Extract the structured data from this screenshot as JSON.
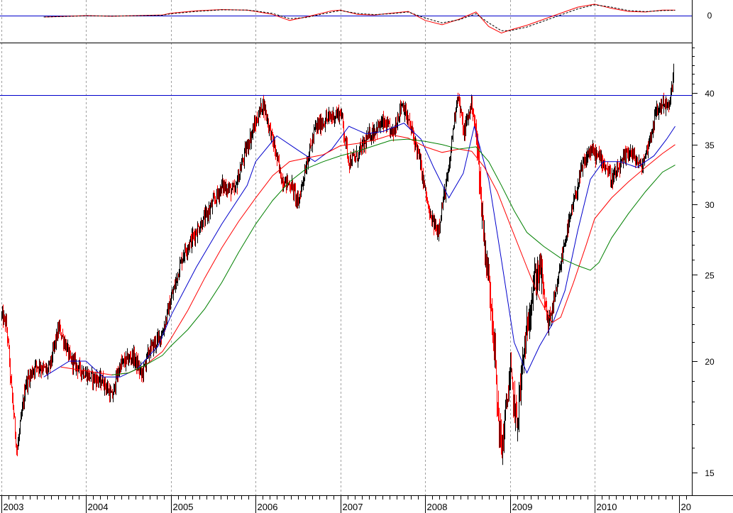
{
  "chart_data": [
    {
      "type": "line",
      "panel": "oscillator",
      "y_scale": "linear",
      "ylim": [
        -1.6,
        1.05
      ],
      "y_ticks": [
        {
          "value": 0,
          "label": "0"
        }
      ],
      "reference_line": 0,
      "series": [
        {
          "style": "solid",
          "color": "#ff0000",
          "values": [
            [
              2003.5,
              -0.12
            ],
            [
              2003.8,
              -0.05
            ],
            [
              2004.0,
              0.0
            ],
            [
              2004.3,
              -0.05
            ],
            [
              2004.6,
              0.0
            ],
            [
              2004.9,
              0.05
            ],
            [
              2005.0,
              0.2
            ],
            [
              2005.3,
              0.4
            ],
            [
              2005.6,
              0.5
            ],
            [
              2005.9,
              0.45
            ],
            [
              2006.0,
              0.35
            ],
            [
              2006.2,
              0.1
            ],
            [
              2006.4,
              -0.4
            ],
            [
              2006.6,
              -0.1
            ],
            [
              2006.9,
              0.4
            ],
            [
              2007.0,
              0.45
            ],
            [
              2007.2,
              0.1
            ],
            [
              2007.4,
              0.05
            ],
            [
              2007.6,
              0.2
            ],
            [
              2007.8,
              0.35
            ],
            [
              2008.0,
              -0.4
            ],
            [
              2008.2,
              -0.75
            ],
            [
              2008.4,
              -0.3
            ],
            [
              2008.6,
              0.3
            ],
            [
              2008.75,
              -0.9
            ],
            [
              2008.9,
              -1.45
            ],
            [
              2009.0,
              -1.2
            ],
            [
              2009.2,
              -0.8
            ],
            [
              2009.4,
              -0.3
            ],
            [
              2009.6,
              0.2
            ],
            [
              2009.8,
              0.7
            ],
            [
              2010.0,
              0.95
            ],
            [
              2010.2,
              0.6
            ],
            [
              2010.4,
              0.35
            ],
            [
              2010.6,
              0.3
            ],
            [
              2010.8,
              0.45
            ],
            [
              2010.95,
              0.45
            ]
          ]
        },
        {
          "style": "dashed",
          "color": "#000000",
          "values": [
            [
              2003.5,
              -0.12
            ],
            [
              2003.8,
              -0.06
            ],
            [
              2004.0,
              -0.02
            ],
            [
              2004.3,
              -0.04
            ],
            [
              2004.6,
              -0.01
            ],
            [
              2004.9,
              0.03
            ],
            [
              2005.0,
              0.15
            ],
            [
              2005.3,
              0.35
            ],
            [
              2005.6,
              0.48
            ],
            [
              2005.9,
              0.46
            ],
            [
              2006.0,
              0.38
            ],
            [
              2006.2,
              0.18
            ],
            [
              2006.4,
              -0.25
            ],
            [
              2006.6,
              -0.15
            ],
            [
              2006.9,
              0.3
            ],
            [
              2007.0,
              0.42
            ],
            [
              2007.2,
              0.18
            ],
            [
              2007.4,
              0.08
            ],
            [
              2007.6,
              0.16
            ],
            [
              2007.8,
              0.3
            ],
            [
              2008.0,
              -0.2
            ],
            [
              2008.2,
              -0.6
            ],
            [
              2008.4,
              -0.35
            ],
            [
              2008.6,
              0.15
            ],
            [
              2008.75,
              -0.6
            ],
            [
              2008.9,
              -1.25
            ],
            [
              2009.0,
              -1.25
            ],
            [
              2009.2,
              -0.95
            ],
            [
              2009.4,
              -0.45
            ],
            [
              2009.6,
              0.05
            ],
            [
              2009.8,
              0.55
            ],
            [
              2010.0,
              0.9
            ],
            [
              2010.2,
              0.7
            ],
            [
              2010.4,
              0.42
            ],
            [
              2010.6,
              0.33
            ],
            [
              2010.8,
              0.42
            ],
            [
              2010.95,
              0.44
            ]
          ]
        }
      ]
    },
    {
      "type": "candlestick",
      "panel": "price",
      "y_scale": "log",
      "ylim": [
        14.5,
        46
      ],
      "y_ticks": [
        {
          "value": 15,
          "label": "15"
        },
        {
          "value": 20,
          "label": "20"
        },
        {
          "value": 25,
          "label": "25"
        },
        {
          "value": 30,
          "label": "30"
        },
        {
          "value": 35,
          "label": "35"
        },
        {
          "value": 40,
          "label": "40"
        }
      ],
      "xlim": [
        2003.0,
        2010.95
      ],
      "x_ticks": [
        "2003",
        "2004",
        "2005",
        "2006",
        "2007",
        "2008",
        "2009",
        "2010",
        "20"
      ],
      "reference_line": 39.8,
      "up_color": "#000000",
      "down_color": "#ff0000",
      "price_path": [
        [
          2003.0,
          22.5
        ],
        [
          2003.05,
          22.0
        ],
        [
          2003.12,
          18.5
        ],
        [
          2003.18,
          15.8
        ],
        [
          2003.28,
          18.8
        ],
        [
          2003.4,
          19.8
        ],
        [
          2003.55,
          19.5
        ],
        [
          2003.68,
          21.8
        ],
        [
          2003.8,
          20.2
        ],
        [
          2003.92,
          19.6
        ],
        [
          2004.05,
          19.2
        ],
        [
          2004.2,
          19.0
        ],
        [
          2004.3,
          18.2
        ],
        [
          2004.4,
          19.8
        ],
        [
          2004.55,
          20.3
        ],
        [
          2004.65,
          19.3
        ],
        [
          2004.75,
          20.6
        ],
        [
          2004.9,
          21.5
        ],
        [
          2005.0,
          23.5
        ],
        [
          2005.15,
          26.5
        ],
        [
          2005.3,
          28.0
        ],
        [
          2005.45,
          29.5
        ],
        [
          2005.6,
          31.5
        ],
        [
          2005.75,
          31.0
        ],
        [
          2005.9,
          35.0
        ],
        [
          2006.0,
          37.0
        ],
        [
          2006.08,
          39.0
        ],
        [
          2006.18,
          36.0
        ],
        [
          2006.3,
          32.0
        ],
        [
          2006.42,
          31.5
        ],
        [
          2006.5,
          30.0
        ],
        [
          2006.6,
          33.5
        ],
        [
          2006.7,
          36.5
        ],
        [
          2006.85,
          37.5
        ],
        [
          2007.0,
          38.0
        ],
        [
          2007.1,
          33.5
        ],
        [
          2007.2,
          34.0
        ],
        [
          2007.35,
          36.0
        ],
        [
          2007.5,
          37.0
        ],
        [
          2007.62,
          36.0
        ],
        [
          2007.72,
          39.0
        ],
        [
          2007.85,
          36.0
        ],
        [
          2007.95,
          33.0
        ],
        [
          2008.05,
          29.0
        ],
        [
          2008.15,
          28.0
        ],
        [
          2008.28,
          33.0
        ],
        [
          2008.38,
          40.0
        ],
        [
          2008.45,
          36.0
        ],
        [
          2008.55,
          39.0
        ],
        [
          2008.62,
          34.0
        ],
        [
          2008.7,
          27.0
        ],
        [
          2008.78,
          23.0
        ],
        [
          2008.85,
          18.0
        ],
        [
          2008.9,
          15.8
        ],
        [
          2009.0,
          19.5
        ],
        [
          2009.08,
          17.0
        ],
        [
          2009.16,
          20.5
        ],
        [
          2009.28,
          24.5
        ],
        [
          2009.35,
          25.5
        ],
        [
          2009.45,
          22.0
        ],
        [
          2009.55,
          24.0
        ],
        [
          2009.65,
          27.5
        ],
        [
          2009.75,
          30.0
        ],
        [
          2009.85,
          33.0
        ],
        [
          2009.95,
          34.5
        ],
        [
          2010.1,
          33.5
        ],
        [
          2010.2,
          32.0
        ],
        [
          2010.3,
          33.0
        ],
        [
          2010.4,
          34.5
        ],
        [
          2010.55,
          33.0
        ],
        [
          2010.65,
          35.5
        ],
        [
          2010.72,
          38.0
        ],
        [
          2010.8,
          39.0
        ],
        [
          2010.88,
          38.5
        ],
        [
          2010.93,
          42.5
        ]
      ],
      "moving_averages": [
        {
          "color": "#0000cc",
          "values": [
            [
              2003.5,
              19.2
            ],
            [
              2003.8,
              20.0
            ],
            [
              2004.0,
              20.0
            ],
            [
              2004.2,
              19.2
            ],
            [
              2004.4,
              19.2
            ],
            [
              2004.6,
              19.6
            ],
            [
              2004.85,
              20.8
            ],
            [
              2005.0,
              22.5
            ],
            [
              2005.3,
              25.5
            ],
            [
              2005.6,
              28.5
            ],
            [
              2005.9,
              31.5
            ],
            [
              2006.0,
              33.5
            ],
            [
              2006.25,
              35.8
            ],
            [
              2006.5,
              34.5
            ],
            [
              2006.7,
              33.5
            ],
            [
              2006.9,
              34.6
            ],
            [
              2007.1,
              36.7
            ],
            [
              2007.3,
              36.0
            ],
            [
              2007.5,
              36.2
            ],
            [
              2007.75,
              37.0
            ],
            [
              2007.95,
              35.5
            ],
            [
              2008.1,
              33.0
            ],
            [
              2008.28,
              30.5
            ],
            [
              2008.45,
              32.5
            ],
            [
              2008.58,
              36.7
            ],
            [
              2008.75,
              32.0
            ],
            [
              2008.9,
              26.0
            ],
            [
              2009.05,
              21.0
            ],
            [
              2009.2,
              19.4
            ],
            [
              2009.35,
              20.8
            ],
            [
              2009.5,
              22.0
            ],
            [
              2009.65,
              24.0
            ],
            [
              2009.8,
              28.0
            ],
            [
              2009.95,
              32.0
            ],
            [
              2010.1,
              33.5
            ],
            [
              2010.3,
              33.5
            ],
            [
              2010.5,
              33.0
            ],
            [
              2010.7,
              34.0
            ],
            [
              2010.85,
              35.5
            ],
            [
              2010.95,
              36.7
            ]
          ]
        },
        {
          "color": "#ff0000",
          "values": [
            [
              2003.7,
              19.7
            ],
            [
              2004.0,
              19.5
            ],
            [
              2004.3,
              19.3
            ],
            [
              2004.5,
              19.4
            ],
            [
              2004.7,
              19.8
            ],
            [
              2004.9,
              20.5
            ],
            [
              2005.0,
              21.2
            ],
            [
              2005.2,
              22.8
            ],
            [
              2005.4,
              24.8
            ],
            [
              2005.6,
              26.8
            ],
            [
              2005.8,
              28.7
            ],
            [
              2006.0,
              30.5
            ],
            [
              2006.2,
              32.3
            ],
            [
              2006.4,
              33.5
            ],
            [
              2006.6,
              33.8
            ],
            [
              2006.8,
              34.1
            ],
            [
              2007.0,
              34.9
            ],
            [
              2007.2,
              35.1
            ],
            [
              2007.4,
              35.4
            ],
            [
              2007.6,
              35.9
            ],
            [
              2007.8,
              35.6
            ],
            [
              2008.0,
              34.8
            ],
            [
              2008.2,
              34.3
            ],
            [
              2008.4,
              34.6
            ],
            [
              2008.55,
              34.4
            ],
            [
              2008.7,
              33.0
            ],
            [
              2008.85,
              31.0
            ],
            [
              2009.0,
              28.5
            ],
            [
              2009.2,
              25.5
            ],
            [
              2009.35,
              23.5
            ],
            [
              2009.5,
              22.1
            ],
            [
              2009.6,
              22.4
            ],
            [
              2009.75,
              24.5
            ],
            [
              2009.9,
              27.0
            ],
            [
              2010.0,
              28.9
            ],
            [
              2010.2,
              30.5
            ],
            [
              2010.4,
              31.8
            ],
            [
              2010.6,
              33.0
            ],
            [
              2010.8,
              34.2
            ],
            [
              2010.95,
              35.0
            ]
          ]
        },
        {
          "color": "#008000",
          "values": [
            [
              2004.3,
              19.3
            ],
            [
              2004.5,
              19.4
            ],
            [
              2004.7,
              19.8
            ],
            [
              2004.9,
              20.3
            ],
            [
              2005.0,
              20.8
            ],
            [
              2005.2,
              21.7
            ],
            [
              2005.4,
              22.9
            ],
            [
              2005.6,
              24.5
            ],
            [
              2005.8,
              26.5
            ],
            [
              2006.0,
              28.5
            ],
            [
              2006.2,
              30.3
            ],
            [
              2006.4,
              31.8
            ],
            [
              2006.6,
              32.9
            ],
            [
              2006.8,
              33.5
            ],
            [
              2007.0,
              34.0
            ],
            [
              2007.2,
              34.4
            ],
            [
              2007.4,
              34.9
            ],
            [
              2007.6,
              35.4
            ],
            [
              2007.8,
              35.5
            ],
            [
              2008.0,
              35.3
            ],
            [
              2008.2,
              35.0
            ],
            [
              2008.4,
              34.6
            ],
            [
              2008.6,
              34.8
            ],
            [
              2008.75,
              33.5
            ],
            [
              2008.9,
              31.5
            ],
            [
              2009.05,
              29.5
            ],
            [
              2009.2,
              27.9
            ],
            [
              2009.4,
              26.9
            ],
            [
              2009.6,
              26.1
            ],
            [
              2009.8,
              25.6
            ],
            [
              2009.95,
              25.3
            ],
            [
              2010.05,
              25.8
            ],
            [
              2010.2,
              27.5
            ],
            [
              2010.4,
              29.3
            ],
            [
              2010.6,
              31.0
            ],
            [
              2010.8,
              32.6
            ],
            [
              2010.95,
              33.2
            ]
          ]
        }
      ]
    }
  ]
}
